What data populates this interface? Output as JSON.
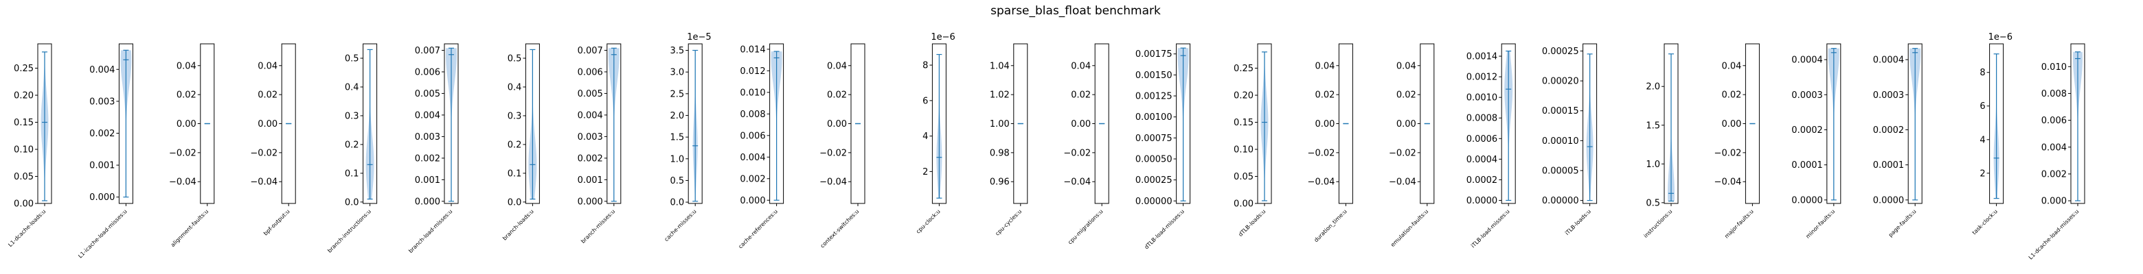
{
  "figure": {
    "title": "sparse_blas_float benchmark",
    "violin_color": "#a6c8e8",
    "line_color": "#1f77b4"
  },
  "chart_data": [
    {
      "type": "violin",
      "xlabel": "L1-dcache-loads:u",
      "ylim": [
        0,
        0.295
      ],
      "yticks": [
        "0.00",
        "0.05",
        "0.10",
        "0.15",
        "0.20",
        "0.25"
      ],
      "tick_values": [
        0,
        0.05,
        0.1,
        0.15,
        0.2,
        0.25
      ],
      "offset": "",
      "min": 0.005,
      "max": 0.28,
      "median": 0.15,
      "mean": 0.15,
      "width": 0.55
    },
    {
      "type": "violin",
      "xlabel": "L1-icache-load-misses:u",
      "ylim": [
        -0.0002,
        0.0048
      ],
      "yticks": [
        "0.000",
        "0.001",
        "0.002",
        "0.003",
        "0.004"
      ],
      "tick_values": [
        0,
        0.001,
        0.002,
        0.003,
        0.004
      ],
      "offset": "",
      "min": 0.0,
      "max": 0.0046,
      "median": 0.0043,
      "mean": 0.0043,
      "width": 0.8
    },
    {
      "type": "violin",
      "xlabel": "alignment-faults:u",
      "ylim": [
        -0.055,
        0.055
      ],
      "yticks": [
        "−0.04",
        "−0.02",
        "0.00",
        "0.02",
        "0.04"
      ],
      "tick_values": [
        -0.04,
        -0.02,
        0,
        0.02,
        0.04
      ],
      "offset": "",
      "min": 0,
      "max": 0,
      "median": 0,
      "mean": 0,
      "width": 0.0
    },
    {
      "type": "violin",
      "xlabel": "bpf-output:u",
      "ylim": [
        -0.055,
        0.055
      ],
      "yticks": [
        "−0.04",
        "−0.02",
        "0.00",
        "0.02",
        "0.04"
      ],
      "tick_values": [
        -0.04,
        -0.02,
        0,
        0.02,
        0.04
      ],
      "offset": "",
      "min": 0,
      "max": 0,
      "median": 0,
      "mean": 0,
      "width": 0.0
    },
    {
      "type": "violin",
      "xlabel": "branch-instructions:u",
      "ylim": [
        -0.005,
        0.55
      ],
      "yticks": [
        "0.0",
        "0.1",
        "0.2",
        "0.3",
        "0.4",
        "0.5"
      ],
      "tick_values": [
        0,
        0.1,
        0.2,
        0.3,
        0.4,
        0.5
      ],
      "offset": "",
      "min": 0.01,
      "max": 0.53,
      "median": 0.13,
      "mean": 0.13,
      "width": 0.6
    },
    {
      "type": "violin",
      "xlabel": "branch-load-misses:u",
      "ylim": [
        -0.0001,
        0.0073
      ],
      "yticks": [
        "0.000",
        "0.001",
        "0.002",
        "0.003",
        "0.004",
        "0.005",
        "0.006",
        "0.007"
      ],
      "tick_values": [
        0,
        0.001,
        0.002,
        0.003,
        0.004,
        0.005,
        0.006,
        0.007
      ],
      "offset": "",
      "min": 0.0,
      "max": 0.0071,
      "median": 0.0068,
      "mean": 0.0068,
      "width": 0.8
    },
    {
      "type": "violin",
      "xlabel": "branch-loads:u",
      "ylim": [
        -0.005,
        0.55
      ],
      "yticks": [
        "0.0",
        "0.1",
        "0.2",
        "0.3",
        "0.4",
        "0.5"
      ],
      "tick_values": [
        0,
        0.1,
        0.2,
        0.3,
        0.4,
        0.5
      ],
      "offset": "",
      "min": 0.01,
      "max": 0.53,
      "median": 0.13,
      "mean": 0.13,
      "width": 0.6
    },
    {
      "type": "violin",
      "xlabel": "branch-misses:u",
      "ylim": [
        -0.0001,
        0.0073
      ],
      "yticks": [
        "0.000",
        "0.001",
        "0.002",
        "0.003",
        "0.004",
        "0.005",
        "0.006",
        "0.007"
      ],
      "tick_values": [
        0,
        0.001,
        0.002,
        0.003,
        0.004,
        0.005,
        0.006,
        0.007
      ],
      "offset": "",
      "min": 0.0,
      "max": 0.0071,
      "median": 0.0068,
      "mean": 0.0068,
      "width": 0.8
    },
    {
      "type": "violin",
      "xlabel": "cache-misses:u",
      "ylim": [
        -0.03,
        3.65
      ],
      "yticks": [
        "0.0",
        "0.5",
        "1.0",
        "1.5",
        "2.0",
        "2.5",
        "3.0",
        "3.5"
      ],
      "tick_values": [
        0,
        0.5,
        1.0,
        1.5,
        2.0,
        2.5,
        3.0,
        3.5
      ],
      "offset": "1e−5",
      "min": 0.02,
      "max": 3.5,
      "median": 1.3,
      "mean": 1.3,
      "width": 0.35
    },
    {
      "type": "violin",
      "xlabel": "cache-references:u",
      "ylim": [
        -0.0003,
        0.0145
      ],
      "yticks": [
        "0.000",
        "0.002",
        "0.004",
        "0.006",
        "0.008",
        "0.010",
        "0.012",
        "0.014"
      ],
      "tick_values": [
        0,
        0.002,
        0.004,
        0.006,
        0.008,
        0.01,
        0.012,
        0.014
      ],
      "offset": "",
      "min": 0.0,
      "max": 0.0138,
      "median": 0.0132,
      "mean": 0.0132,
      "width": 0.8
    },
    {
      "type": "violin",
      "xlabel": "context-switches:u",
      "ylim": [
        -0.055,
        0.055
      ],
      "yticks": [
        "−0.04",
        "−0.02",
        "0.00",
        "0.02",
        "0.04"
      ],
      "tick_values": [
        -0.04,
        -0.02,
        0,
        0.02,
        0.04
      ],
      "offset": "",
      "min": 0,
      "max": 0,
      "median": 0,
      "mean": 0,
      "width": 0.0
    },
    {
      "type": "violin",
      "xlabel": "cpu-clock:u",
      "ylim": [
        0.2,
        9.2
      ],
      "yticks": [
        "2",
        "4",
        "6",
        "8"
      ],
      "tick_values": [
        2,
        4,
        6,
        8
      ],
      "offset": "1e−6",
      "min": 0.5,
      "max": 8.6,
      "median": 2.8,
      "mean": 2.8,
      "width": 0.4
    },
    {
      "type": "violin",
      "xlabel": "cpu-cycles:u",
      "ylim": [
        0.945,
        1.055
      ],
      "yticks": [
        "0.96",
        "0.98",
        "1.00",
        "1.02",
        "1.04"
      ],
      "tick_values": [
        0.96,
        0.98,
        1.0,
        1.02,
        1.04
      ],
      "offset": "",
      "min": 1,
      "max": 1,
      "median": 1,
      "mean": 1,
      "width": 0.0
    },
    {
      "type": "violin",
      "xlabel": "cpu-migrations:u",
      "ylim": [
        -0.055,
        0.055
      ],
      "yticks": [
        "−0.04",
        "−0.02",
        "0.00",
        "0.02",
        "0.04"
      ],
      "tick_values": [
        -0.04,
        -0.02,
        0,
        0.02,
        0.04
      ],
      "offset": "",
      "min": 0,
      "max": 0,
      "median": 0,
      "mean": 0,
      "width": 0.0
    },
    {
      "type": "violin",
      "xlabel": "dTLB-load-misses:u",
      "ylim": [
        -3e-05,
        0.00187
      ],
      "yticks": [
        "0.00000",
        "0.00025",
        "0.00050",
        "0.00075",
        "0.00100",
        "0.00125",
        "0.00150",
        "0.00175"
      ],
      "tick_values": [
        0,
        0.00025,
        0.0005,
        0.00075,
        0.001,
        0.00125,
        0.0015,
        0.00175
      ],
      "offset": "",
      "min": 0.0,
      "max": 0.00182,
      "median": 0.00173,
      "mean": 0.00173,
      "width": 0.8
    },
    {
      "type": "violin",
      "xlabel": "dTLB-loads:u",
      "ylim": [
        0,
        0.295
      ],
      "yticks": [
        "0.00",
        "0.05",
        "0.10",
        "0.15",
        "0.20",
        "0.25"
      ],
      "tick_values": [
        0,
        0.05,
        0.1,
        0.15,
        0.2,
        0.25
      ],
      "offset": "",
      "min": 0.005,
      "max": 0.28,
      "median": 0.15,
      "mean": 0.15,
      "width": 0.55
    },
    {
      "type": "violin",
      "xlabel": "duration_time:u",
      "ylim": [
        -0.055,
        0.055
      ],
      "yticks": [
        "−0.04",
        "−0.02",
        "0.00",
        "0.02",
        "0.04"
      ],
      "tick_values": [
        -0.04,
        -0.02,
        0,
        0.02,
        0.04
      ],
      "offset": "",
      "min": 0,
      "max": 0,
      "median": 0,
      "mean": 0,
      "width": 0.0
    },
    {
      "type": "violin",
      "xlabel": "emulation-faults:u",
      "ylim": [
        -0.055,
        0.055
      ],
      "yticks": [
        "−0.04",
        "−0.02",
        "0.00",
        "0.02",
        "0.04"
      ],
      "tick_values": [
        -0.04,
        -0.02,
        0,
        0.02,
        0.04
      ],
      "offset": "",
      "min": 0,
      "max": 0,
      "median": 0,
      "mean": 0,
      "width": 0.0
    },
    {
      "type": "violin",
      "xlabel": "iTLB-load-misses:u",
      "ylim": [
        -3e-05,
        0.00152
      ],
      "yticks": [
        "0.0000",
        "0.0002",
        "0.0004",
        "0.0006",
        "0.0008",
        "0.0010",
        "0.0012",
        "0.0014"
      ],
      "tick_values": [
        0,
        0.0002,
        0.0004,
        0.0006,
        0.0008,
        0.001,
        0.0012,
        0.0014
      ],
      "offset": "",
      "min": 0.0,
      "max": 0.00145,
      "median": 0.00108,
      "mean": 0.00108,
      "width": 0.6
    },
    {
      "type": "violin",
      "xlabel": "iTLB-loads:u",
      "ylim": [
        -5e-06,
        0.000262
      ],
      "yticks": [
        "0.00000",
        "0.00005",
        "0.00010",
        "0.00015",
        "0.00020",
        "0.00025"
      ],
      "tick_values": [
        0,
        5e-05,
        0.0001,
        0.00015,
        0.0002,
        0.00025
      ],
      "offset": "",
      "min": 0.0,
      "max": 0.000245,
      "median": 9e-05,
      "mean": 9e-05,
      "width": 0.5
    },
    {
      "type": "violin",
      "xlabel": "instructions:u",
      "ylim": [
        0.49,
        2.55
      ],
      "yticks": [
        "0.5",
        "1.0",
        "1.5",
        "2.0"
      ],
      "tick_values": [
        0.5,
        1.0,
        1.5,
        2.0
      ],
      "offset": "",
      "min": 0.52,
      "max": 2.42,
      "median": 0.62,
      "mean": 0.62,
      "width": 0.5
    },
    {
      "type": "violin",
      "xlabel": "major-faults:u",
      "ylim": [
        -0.055,
        0.055
      ],
      "yticks": [
        "−0.04",
        "−0.02",
        "0.00",
        "0.02",
        "0.04"
      ],
      "tick_values": [
        -0.04,
        -0.02,
        0,
        0.02,
        0.04
      ],
      "offset": "",
      "min": 0,
      "max": 0,
      "median": 0,
      "mean": 0,
      "width": 0.0
    },
    {
      "type": "violin",
      "xlabel": "minor-faults:u",
      "ylim": [
        -1e-05,
        0.000445
      ],
      "yticks": [
        "0.0000",
        "0.0001",
        "0.0002",
        "0.0003",
        "0.0004"
      ],
      "tick_values": [
        0,
        0.0001,
        0.0002,
        0.0003,
        0.0004
      ],
      "offset": "",
      "min": 0.0,
      "max": 0.000432,
      "median": 0.00042,
      "mean": 0.00042,
      "width": 0.8
    },
    {
      "type": "violin",
      "xlabel": "page-faults:u",
      "ylim": [
        -1e-05,
        0.000445
      ],
      "yticks": [
        "0.0000",
        "0.0001",
        "0.0002",
        "0.0003",
        "0.0004"
      ],
      "tick_values": [
        0,
        0.0001,
        0.0002,
        0.0003,
        0.0004
      ],
      "offset": "",
      "min": 0.0,
      "max": 0.000432,
      "median": 0.00042,
      "mean": 0.00042,
      "width": 0.8
    },
    {
      "type": "violin",
      "xlabel": "task-clock:u",
      "ylim": [
        0.2,
        9.7
      ],
      "yticks": [
        "2",
        "4",
        "6",
        "8"
      ],
      "tick_values": [
        2,
        4,
        6,
        8
      ],
      "offset": "1e−6",
      "min": 0.5,
      "max": 9.1,
      "median": 2.9,
      "mean": 2.9,
      "width": 0.4
    },
    {
      "type": "violin",
      "xlabel": "L1-dcache-load-misses:u",
      "ylim": [
        -0.0002,
        0.0117
      ],
      "yticks": [
        "0.000",
        "0.002",
        "0.004",
        "0.006",
        "0.008",
        "0.010"
      ],
      "tick_values": [
        0,
        0.002,
        0.004,
        0.006,
        0.008,
        0.01
      ],
      "offset": "",
      "min": 0.0,
      "max": 0.0111,
      "median": 0.0106,
      "mean": 0.0106,
      "width": 0.7
    }
  ]
}
